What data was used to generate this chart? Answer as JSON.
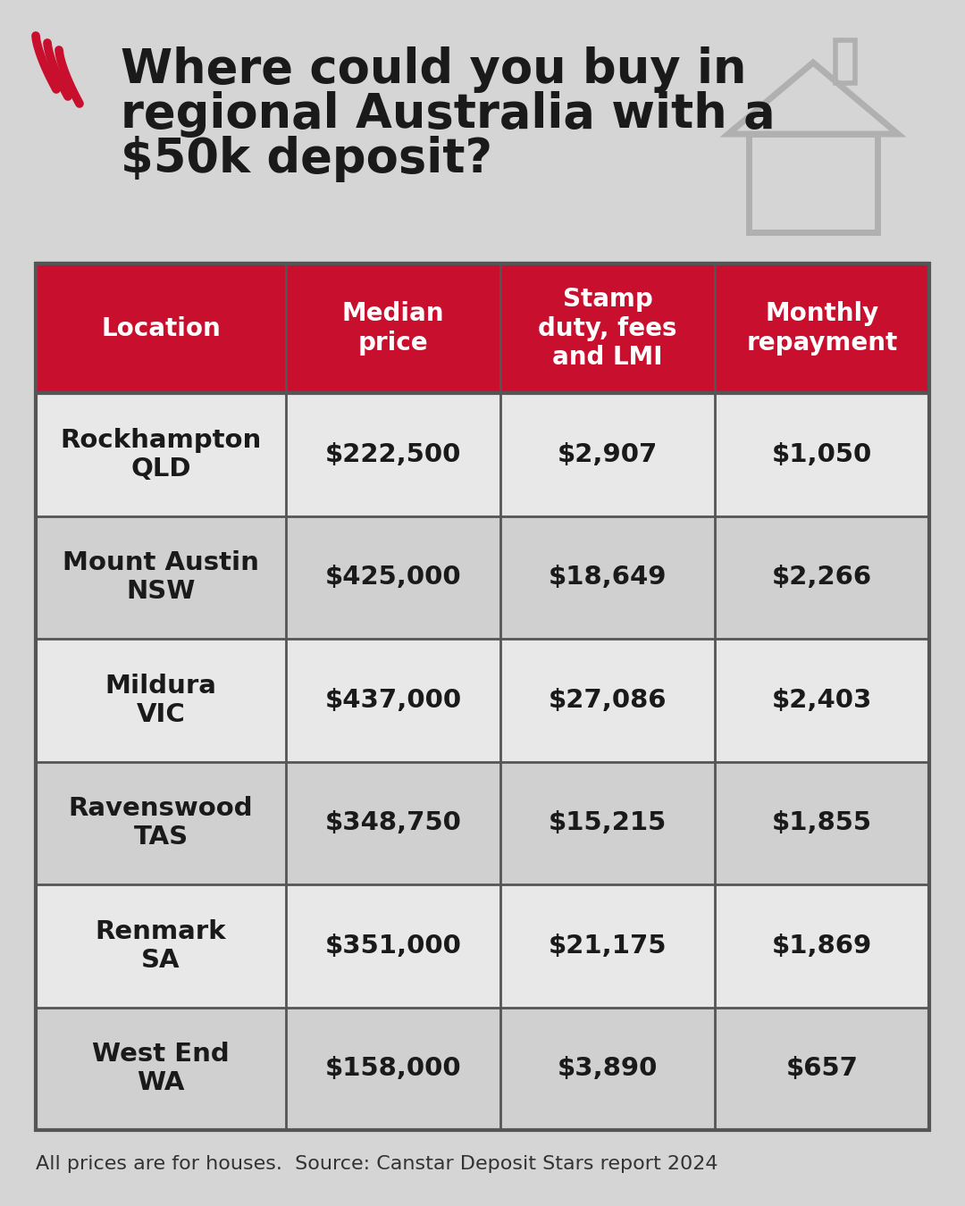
{
  "title_line1": "Where could you buy in",
  "title_line2": "regional Australia with a",
  "title_line3": "$50k deposit?",
  "background_color": "#d5d5d5",
  "header_bg_color": "#c8102e",
  "header_text_color": "#ffffff",
  "row_bg_color_light": "#e8e8e8",
  "row_bg_color_dark": "#d0d0d0",
  "cell_text_color": "#1a1a1a",
  "border_color": "#555555",
  "headers": [
    "Location",
    "Median\nprice",
    "Stamp\nduty, fees\nand LMI",
    "Monthly\nrepayment"
  ],
  "rows": [
    [
      "Rockhampton\nQLD",
      "$222,500",
      "$2,907",
      "$1,050"
    ],
    [
      "Mount Austin\nNSW",
      "$425,000",
      "$18,649",
      "$2,266"
    ],
    [
      "Mildura\nVIC",
      "$437,000",
      "$27,086",
      "$2,403"
    ],
    [
      "Ravenswood\nTAS",
      "$348,750",
      "$15,215",
      "$1,855"
    ],
    [
      "Renmark\nSA",
      "$351,000",
      "$21,175",
      "$1,869"
    ],
    [
      "West End\nWA",
      "$158,000",
      "$3,890",
      "$657"
    ]
  ],
  "footnote": "All prices are for houses.  Source: Canstar Deposit Stars report 2024",
  "title_fontsize": 38,
  "header_fontsize": 20,
  "cell_fontsize": 21,
  "footnote_fontsize": 16
}
